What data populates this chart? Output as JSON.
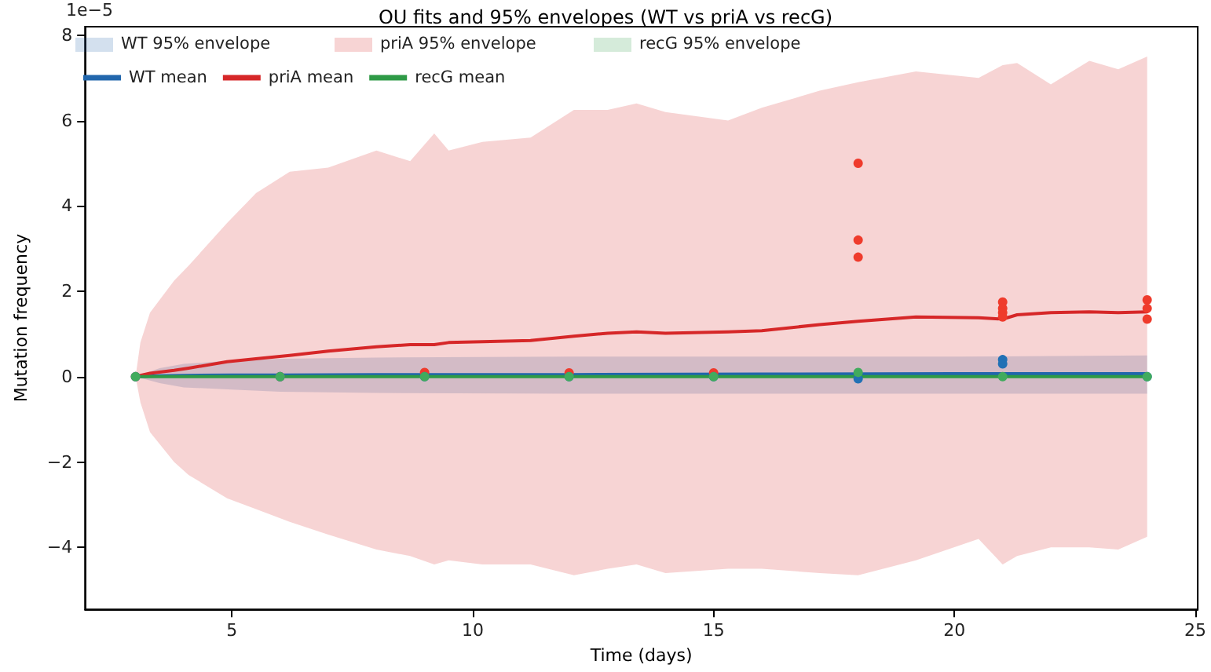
{
  "chart_data": {
    "type": "line",
    "title": "OU fits and 95% envelopes (WT vs priA vs recG)",
    "xlabel": "Time (days)",
    "ylabel": "Mutation frequency",
    "annotations": [
      "1e−5",
      "WT 95% envelope",
      "priA 95% envelope",
      "recG 95% envelope"
    ],
    "xlim": [
      1.95,
      25.05
    ],
    "xticks": [
      5,
      10,
      15,
      20,
      25
    ],
    "ylim": [
      -5.45,
      8.2
    ],
    "yticks": [
      {
        "value": -4,
        "label": "−4"
      },
      {
        "value": -2,
        "label": "−2"
      },
      0,
      2,
      4,
      6,
      8
    ],
    "legend": "top left",
    "grid": false,
    "series": [
      {
        "name": "WT mean",
        "color": "#2166ac",
        "x": [
          3,
          3.5,
          4,
          5,
          6,
          8,
          12,
          16,
          20,
          24
        ],
        "values": [
          0,
          0.02,
          0.03,
          0.04,
          0.04,
          0.05,
          0.05,
          0.06,
          0.07,
          0.07
        ],
        "lower": [
          0,
          -0.15,
          -0.25,
          -0.3,
          -0.35,
          -0.38,
          -0.4,
          -0.4,
          -0.4,
          -0.4
        ],
        "upper": [
          0,
          0.2,
          0.3,
          0.38,
          0.42,
          0.45,
          0.47,
          0.47,
          0.47,
          0.5
        ]
      },
      {
        "name": "priA mean",
        "color": "#d62728",
        "x": [
          3,
          3.1,
          3.3,
          3.8,
          4.1,
          4.9,
          5.5,
          6.2,
          7,
          8,
          8.7,
          9.2,
          9.5,
          10.2,
          11.2,
          12.1,
          12.8,
          13.4,
          14,
          15.3,
          16,
          17.2,
          18,
          19.2,
          20.5,
          21,
          21.3,
          22,
          22.8,
          23.4,
          24
        ],
        "values": [
          0,
          0.03,
          0.08,
          0.15,
          0.2,
          0.35,
          0.42,
          0.5,
          0.6,
          0.7,
          0.75,
          0.75,
          0.8,
          0.82,
          0.85,
          0.95,
          1.02,
          1.05,
          1.02,
          1.05,
          1.08,
          1.22,
          1.3,
          1.4,
          1.38,
          1.35,
          1.45,
          1.5,
          1.52,
          1.5,
          1.52
        ],
        "lower": [
          0,
          -0.6,
          -1.3,
          -2.0,
          -2.3,
          -2.85,
          -3.1,
          -3.4,
          -3.7,
          -4.05,
          -4.2,
          -4.4,
          -4.3,
          -4.4,
          -4.4,
          -4.65,
          -4.5,
          -4.4,
          -4.6,
          -4.5,
          -4.5,
          -4.6,
          -4.65,
          -4.3,
          -3.8,
          -4.4,
          -4.2,
          -4.0,
          -4.0,
          -4.05,
          -3.75
        ],
        "upper": [
          0,
          0.8,
          1.5,
          2.25,
          2.6,
          3.6,
          4.3,
          4.8,
          4.9,
          5.3,
          5.05,
          5.7,
          5.3,
          5.5,
          5.6,
          6.25,
          6.25,
          6.4,
          6.2,
          6.0,
          6.3,
          6.7,
          6.9,
          7.15,
          7.0,
          7.3,
          7.35,
          6.85,
          7.4,
          7.2,
          7.5
        ]
      },
      {
        "name": "recG mean",
        "color": "#2e9a46",
        "x": [
          3,
          6,
          12,
          18,
          24
        ],
        "values": [
          0,
          0,
          0,
          0,
          0
        ]
      },
      {
        "type": "scatter",
        "color": "#ef3b2c",
        "x": [
          3,
          6,
          9,
          12,
          15,
          18,
          18,
          18,
          21,
          21,
          21,
          21,
          24,
          24,
          24
        ],
        "values": [
          0,
          0,
          0.1,
          0.09,
          0.09,
          5.0,
          3.2,
          2.8,
          1.75,
          1.6,
          1.5,
          1.4,
          1.8,
          1.6,
          1.35
        ]
      },
      {
        "type": "scatter",
        "color": "#2171b5",
        "x": [
          3,
          6,
          9,
          12,
          15,
          18,
          21,
          21,
          24
        ],
        "values": [
          0,
          0,
          0,
          0,
          0,
          -0.05,
          0.4,
          0.3,
          0
        ]
      },
      {
        "type": "scatter",
        "color": "#41ab5d",
        "x": [
          3,
          6,
          9,
          12,
          15,
          18,
          21,
          24
        ],
        "values": [
          0,
          0,
          0,
          0,
          0,
          0.1,
          0,
          0
        ]
      }
    ]
  }
}
